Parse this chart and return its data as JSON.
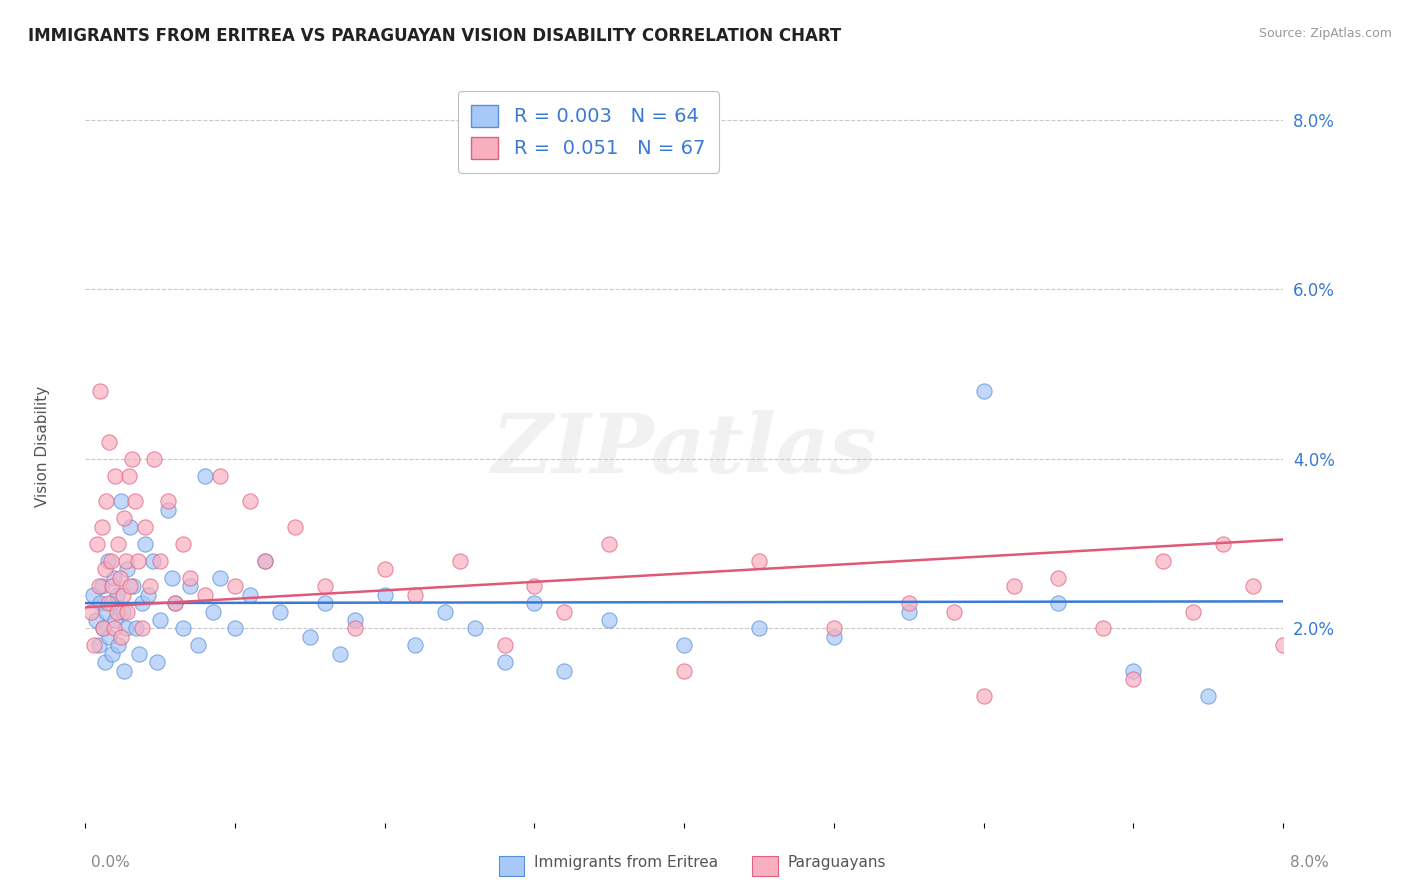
{
  "title": "IMMIGRANTS FROM ERITREA VS PARAGUAYAN VISION DISABILITY CORRELATION CHART",
  "source": "Source: ZipAtlas.com",
  "ylabel": "Vision Disability",
  "xlim": [
    0.0,
    8.0
  ],
  "ylim": [
    -0.3,
    8.5
  ],
  "yticks": [
    2.0,
    4.0,
    6.0,
    8.0
  ],
  "ytick_labels": [
    "2.0%",
    "4.0%",
    "6.0%",
    "8.0%"
  ],
  "xtick_labels_show": [
    "0.0%",
    "8.0%"
  ],
  "legend_entries": [
    {
      "label": "Immigrants from Eritrea",
      "R": "0.003",
      "N": "64"
    },
    {
      "label": "Paraguayans",
      "R": "0.051",
      "N": "67"
    }
  ],
  "blue_face_color": "#a8c8f8",
  "blue_edge_color": "#5590d8",
  "pink_face_color": "#f8b0c0",
  "pink_edge_color": "#e06080",
  "blue_line_color": "#3a7ad5",
  "pink_line_color": "#e05878",
  "background_color": "#ffffff",
  "grid_color": "#c8c8c8",
  "watermark": "ZIPatlas",
  "legend_text_color": "#3a7ad5",
  "blue_trend_y0": 2.3,
  "blue_trend_y1": 2.32,
  "pink_trend_y0": 2.25,
  "pink_trend_y1": 3.05,
  "blue_scatter_x": [
    0.05,
    0.07,
    0.09,
    0.1,
    0.11,
    0.12,
    0.13,
    0.14,
    0.15,
    0.16,
    0.17,
    0.18,
    0.19,
    0.2,
    0.21,
    0.22,
    0.24,
    0.25,
    0.26,
    0.27,
    0.28,
    0.3,
    0.32,
    0.34,
    0.36,
    0.38,
    0.4,
    0.42,
    0.45,
    0.48,
    0.5,
    0.55,
    0.58,
    0.6,
    0.65,
    0.7,
    0.75,
    0.8,
    0.85,
    0.9,
    1.0,
    1.1,
    1.2,
    1.3,
    1.5,
    1.6,
    1.7,
    1.8,
    2.0,
    2.2,
    2.4,
    2.6,
    2.8,
    3.0,
    3.2,
    3.5,
    4.0,
    4.5,
    5.0,
    5.5,
    6.0,
    6.5,
    7.0,
    7.5
  ],
  "blue_scatter_y": [
    2.4,
    2.1,
    1.8,
    2.3,
    2.5,
    2.0,
    1.6,
    2.2,
    2.8,
    1.9,
    2.3,
    1.7,
    2.6,
    2.1,
    2.4,
    1.8,
    3.5,
    2.2,
    1.5,
    2.0,
    2.7,
    3.2,
    2.5,
    2.0,
    1.7,
    2.3,
    3.0,
    2.4,
    2.8,
    1.6,
    2.1,
    3.4,
    2.6,
    2.3,
    2.0,
    2.5,
    1.8,
    3.8,
    2.2,
    2.6,
    2.0,
    2.4,
    2.8,
    2.2,
    1.9,
    2.3,
    1.7,
    2.1,
    2.4,
    1.8,
    2.2,
    2.0,
    1.6,
    2.3,
    1.5,
    2.1,
    1.8,
    2.0,
    1.9,
    2.2,
    4.8,
    2.3,
    1.5,
    1.2
  ],
  "pink_scatter_x": [
    0.04,
    0.06,
    0.08,
    0.09,
    0.1,
    0.11,
    0.12,
    0.13,
    0.14,
    0.15,
    0.16,
    0.17,
    0.18,
    0.19,
    0.2,
    0.21,
    0.22,
    0.23,
    0.24,
    0.25,
    0.26,
    0.27,
    0.28,
    0.29,
    0.3,
    0.31,
    0.33,
    0.35,
    0.38,
    0.4,
    0.43,
    0.46,
    0.5,
    0.55,
    0.6,
    0.65,
    0.7,
    0.8,
    0.9,
    1.0,
    1.1,
    1.2,
    1.4,
    1.6,
    1.8,
    2.0,
    2.2,
    2.5,
    2.8,
    3.0,
    3.2,
    3.5,
    4.0,
    4.5,
    5.0,
    5.5,
    6.0,
    6.5,
    7.0,
    7.2,
    7.4,
    7.6,
    7.8,
    8.0,
    6.8,
    6.2,
    5.8
  ],
  "pink_scatter_y": [
    2.2,
    1.8,
    3.0,
    2.5,
    4.8,
    3.2,
    2.0,
    2.7,
    3.5,
    2.3,
    4.2,
    2.8,
    2.5,
    2.0,
    3.8,
    2.2,
    3.0,
    2.6,
    1.9,
    2.4,
    3.3,
    2.8,
    2.2,
    3.8,
    2.5,
    4.0,
    3.5,
    2.8,
    2.0,
    3.2,
    2.5,
    4.0,
    2.8,
    3.5,
    2.3,
    3.0,
    2.6,
    2.4,
    3.8,
    2.5,
    3.5,
    2.8,
    3.2,
    2.5,
    2.0,
    2.7,
    2.4,
    2.8,
    1.8,
    2.5,
    2.2,
    3.0,
    1.5,
    2.8,
    2.0,
    2.3,
    1.2,
    2.6,
    1.4,
    2.8,
    2.2,
    3.0,
    2.5,
    1.8,
    2.0,
    2.5,
    2.2
  ]
}
